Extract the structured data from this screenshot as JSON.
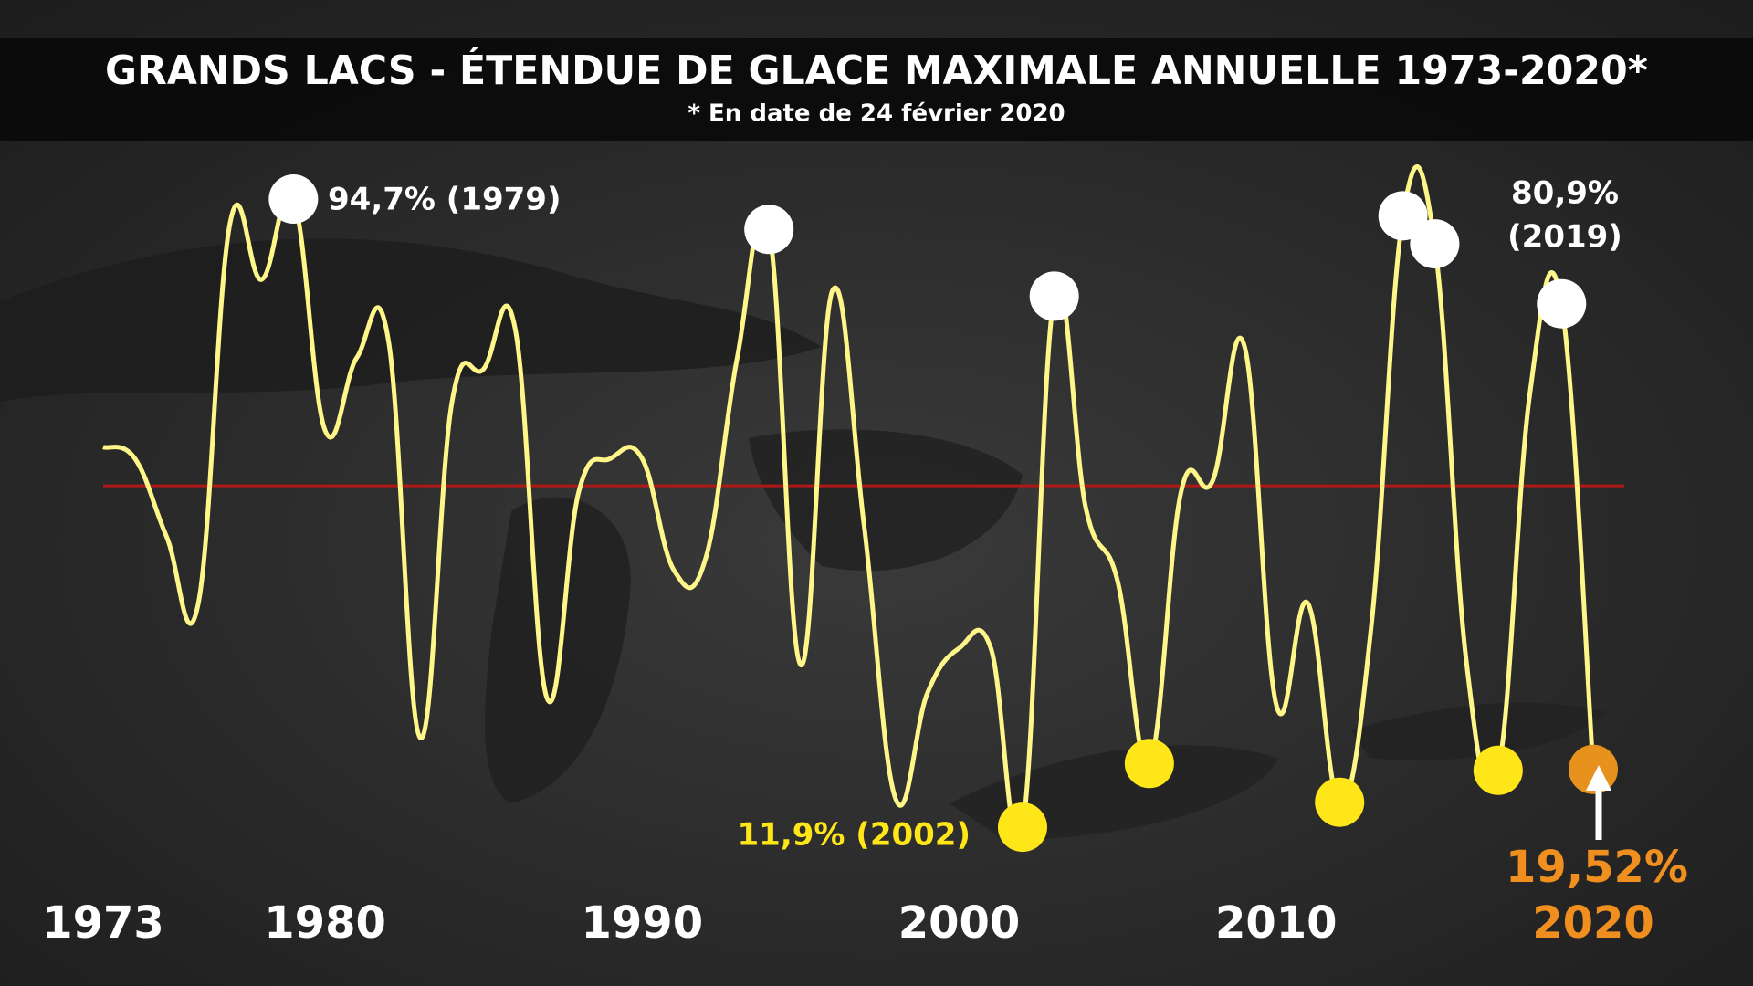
{
  "chart_data": {
    "type": "line",
    "title": "GRANDS LACS - ÉTENDUE DE GLACE MAXIMALE ANNUELLE 1973-2020*",
    "subtitle": "* En date de 24 février 2020",
    "x": [
      1973,
      1974,
      1975,
      1976,
      1977,
      1978,
      1979,
      1980,
      1981,
      1982,
      1983,
      1984,
      1985,
      1986,
      1987,
      1988,
      1989,
      1990,
      1991,
      1992,
      1993,
      1994,
      1995,
      1996,
      1997,
      1998,
      1999,
      2000,
      2001,
      2002,
      2003,
      2004,
      2005,
      2006,
      2007,
      2008,
      2009,
      2010,
      2011,
      2012,
      2013,
      2014,
      2015,
      2016,
      2017,
      2018,
      2019,
      2020
    ],
    "values": [
      62,
      60.5,
      50.2,
      41.4,
      91.5,
      84.1,
      94.7,
      64.2,
      73.8,
      76.0,
      23.7,
      67.9,
      72.3,
      77.5,
      28.9,
      56.1,
      60.5,
      60.5,
      45.8,
      47.3,
      73.8,
      90.7,
      33.3,
      82.6,
      51.7,
      15.6,
      29.6,
      35.5,
      35.5,
      11.9,
      81.9,
      53.9,
      44.3,
      20.3,
      56.1,
      57.6,
      75.3,
      28.1,
      41.4,
      15.2,
      38.4,
      92.5,
      88.8,
      33.7,
      19.4,
      69.0,
      80.9,
      19.52
    ],
    "color": "#fff68a",
    "xlim": [
      1973,
      2020
    ],
    "ylim": [
      0,
      100
    ],
    "xticks": [
      1973,
      1980,
      1990,
      2000,
      2010,
      2020
    ],
    "highlight_tick": 2020,
    "highlight_color": "#ef8f1f",
    "reference_line": {
      "value": 56.9,
      "color": "#b01818"
    },
    "point_markers": [
      {
        "x": 1979,
        "color": "#ffffff"
      },
      {
        "x": 1994,
        "color": "#ffffff"
      },
      {
        "x": 2003,
        "color": "#ffffff"
      },
      {
        "x": 2014,
        "color": "#ffffff"
      },
      {
        "x": 2015,
        "color": "#ffffff"
      },
      {
        "x": 2019,
        "color": "#ffffff"
      },
      {
        "x": 2002,
        "color": "#ffe619"
      },
      {
        "x": 2006,
        "color": "#ffe619"
      },
      {
        "x": 2012,
        "color": "#ffe619"
      },
      {
        "x": 2017,
        "color": "#ffe619"
      },
      {
        "x": 2020,
        "color": "#e8921e"
      }
    ],
    "annotations": [
      {
        "lines": [
          "94,7% (1979)"
        ],
        "color": "#ffffff"
      },
      {
        "lines": [
          "80,9%",
          "(2019)"
        ],
        "color": "#ffffff"
      },
      {
        "lines": [
          "11,9% (2002)"
        ],
        "color": "#ffe619"
      },
      {
        "lines": [
          "19,52%"
        ],
        "color": "#ef8f1f"
      }
    ]
  }
}
